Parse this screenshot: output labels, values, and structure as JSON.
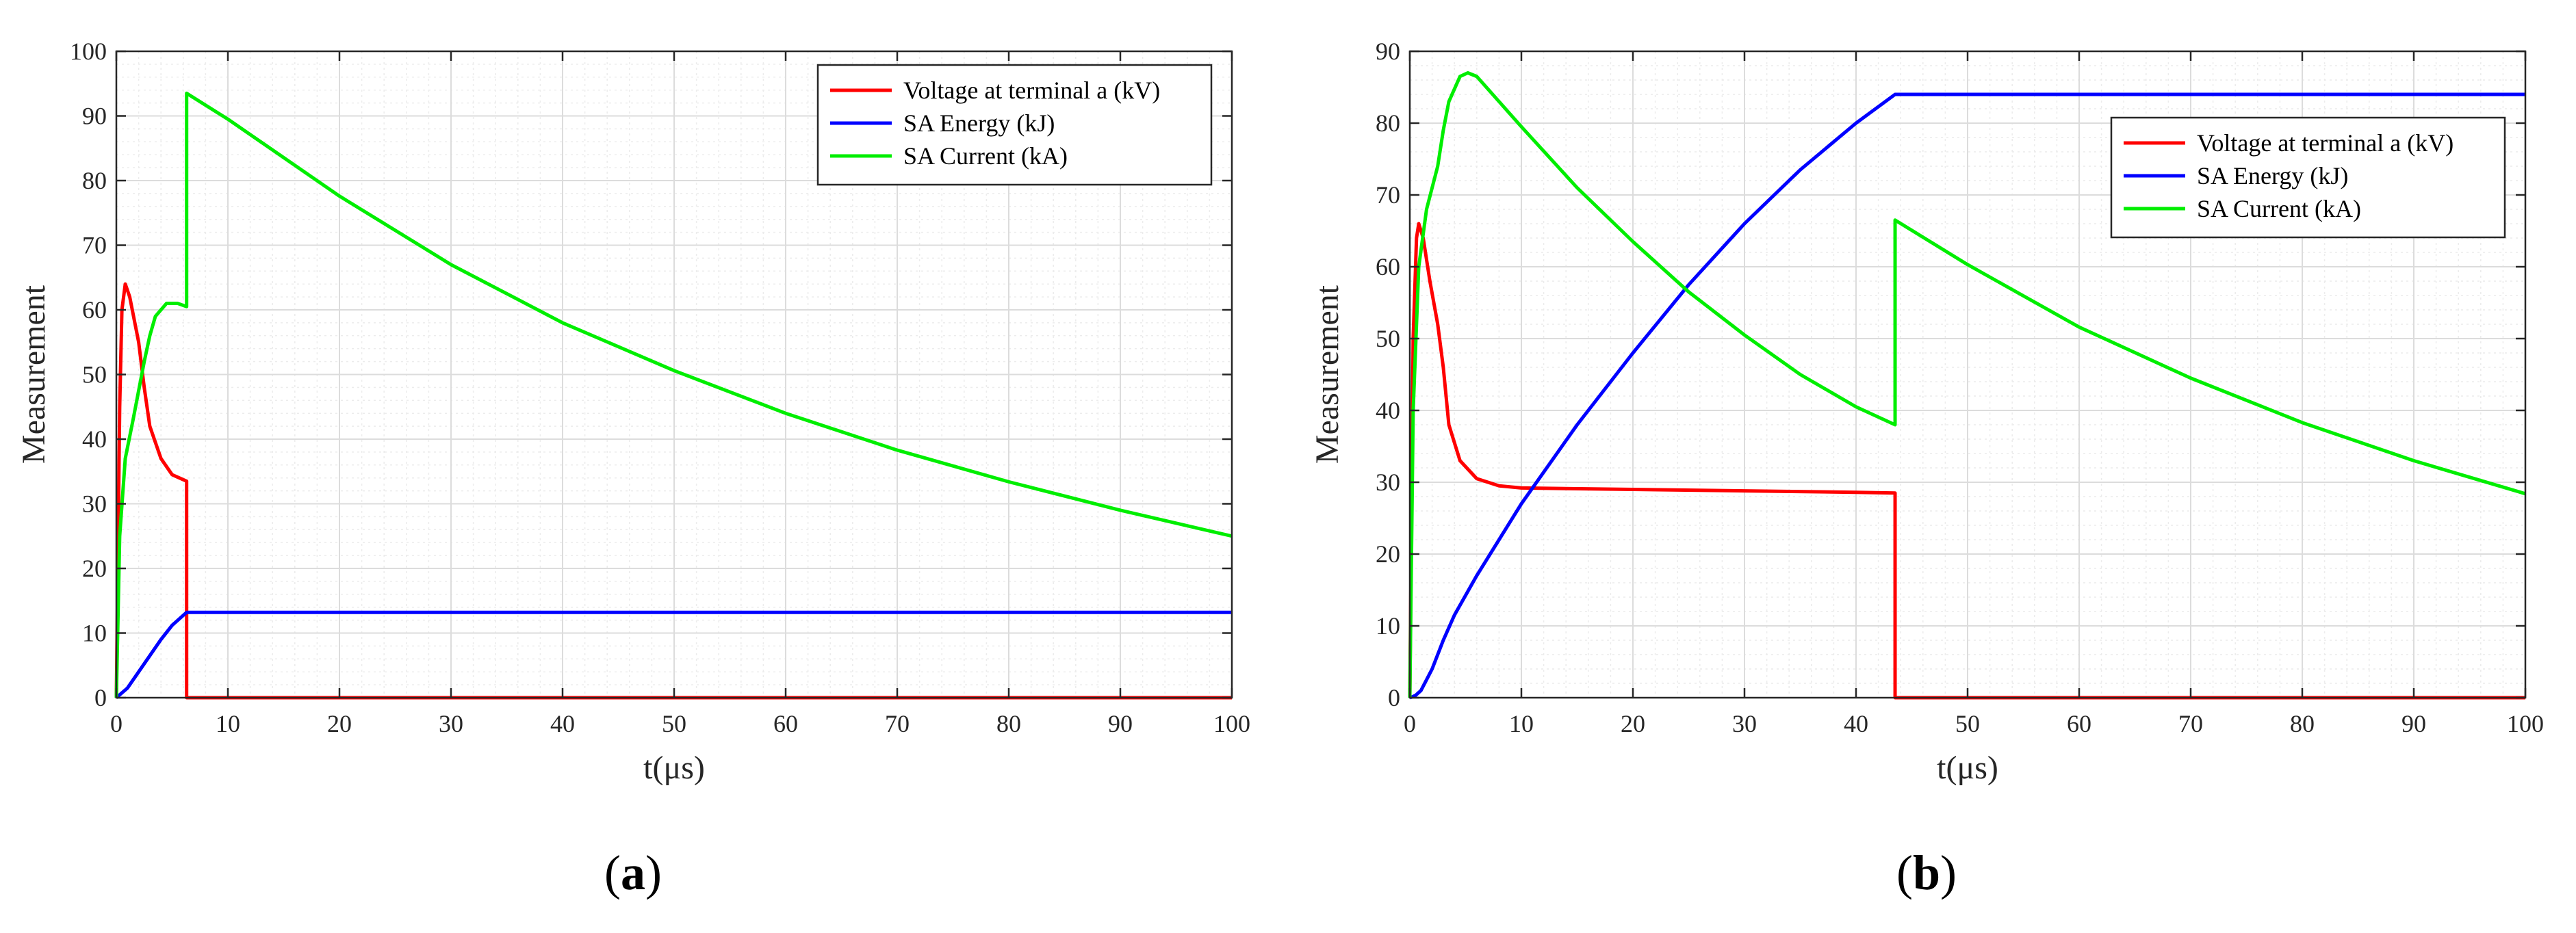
{
  "colors": {
    "voltage": "#ff0000",
    "energy": "#0000ff",
    "current": "#00ee00",
    "grid": "#dcdcdc",
    "minor_grid": "#ececec",
    "axis": "#262626"
  },
  "chart_data": [
    {
      "id": "a",
      "panel_label": "a",
      "type": "line",
      "xlabel": "t(μs)",
      "ylabel": "Measurement",
      "xlim": [
        0,
        100
      ],
      "ylim": [
        0,
        100
      ],
      "xticks": [
        0,
        10,
        20,
        30,
        40,
        50,
        60,
        70,
        80,
        90,
        100
      ],
      "yticks": [
        0,
        10,
        20,
        30,
        40,
        50,
        60,
        70,
        80,
        90,
        100
      ],
      "grid": true,
      "minor_grid": true,
      "legend_position": "top-right",
      "series": [
        {
          "name": "Voltage at terminal a (kV)",
          "color": "#ff0000",
          "points": [
            [
              0,
              0
            ],
            [
              0.3,
              45
            ],
            [
              0.5,
              60
            ],
            [
              0.8,
              64
            ],
            [
              1.2,
              62
            ],
            [
              2,
              55
            ],
            [
              2.5,
              48
            ],
            [
              3,
              42
            ],
            [
              4,
              37
            ],
            [
              5,
              34.5
            ],
            [
              6.3,
              33.5
            ],
            [
              6.3,
              0
            ],
            [
              100,
              0
            ]
          ]
        },
        {
          "name": "SA Energy (kJ)",
          "color": "#0000ff",
          "points": [
            [
              0,
              0
            ],
            [
              1,
              1.5
            ],
            [
              2,
              4
            ],
            [
              3,
              6.5
            ],
            [
              4,
              9
            ],
            [
              5,
              11.2
            ],
            [
              6.3,
              13.2
            ],
            [
              100,
              13.2
            ]
          ]
        },
        {
          "name": "SA Current (kA)",
          "color": "#00ee00",
          "points": [
            [
              0,
              0
            ],
            [
              0.3,
              25
            ],
            [
              0.8,
              37
            ],
            [
              1.5,
              43
            ],
            [
              2.5,
              52
            ],
            [
              3,
              56
            ],
            [
              3.5,
              59
            ],
            [
              4.5,
              61
            ],
            [
              5.5,
              61
            ],
            [
              6.3,
              60.5
            ],
            [
              6.3,
              93.5
            ],
            [
              10,
              89.5
            ],
            [
              20,
              77.6
            ],
            [
              30,
              67
            ],
            [
              40,
              58
            ],
            [
              50,
              50.6
            ],
            [
              60,
              44
            ],
            [
              70,
              38.3
            ],
            [
              80,
              33.4
            ],
            [
              90,
              29
            ],
            [
              100,
              25
            ]
          ]
        }
      ]
    },
    {
      "id": "b",
      "panel_label": "b",
      "type": "line",
      "xlabel": "t(μs)",
      "ylabel": "Measurement",
      "xlim": [
        0,
        100
      ],
      "ylim": [
        0,
        90
      ],
      "xticks": [
        0,
        10,
        20,
        30,
        40,
        50,
        60,
        70,
        80,
        90,
        100
      ],
      "yticks": [
        0,
        10,
        20,
        30,
        40,
        50,
        60,
        70,
        80,
        90
      ],
      "grid": true,
      "minor_grid": true,
      "legend_position": "top-right",
      "series": [
        {
          "name": "Voltage at terminal a (kV)",
          "color": "#ff0000",
          "points": [
            [
              0,
              0
            ],
            [
              0.3,
              50
            ],
            [
              0.6,
              64
            ],
            [
              0.8,
              66
            ],
            [
              1.2,
              64
            ],
            [
              1.8,
              58
            ],
            [
              2.5,
              52
            ],
            [
              3,
              46
            ],
            [
              3.5,
              38
            ],
            [
              4.5,
              33
            ],
            [
              6,
              30.5
            ],
            [
              8,
              29.5
            ],
            [
              10,
              29.2
            ],
            [
              20,
              29
            ],
            [
              30,
              28.8
            ],
            [
              40,
              28.6
            ],
            [
              43.5,
              28.5
            ],
            [
              43.5,
              0
            ],
            [
              100,
              0
            ]
          ]
        },
        {
          "name": "SA Energy (kJ)",
          "color": "#0000ff",
          "points": [
            [
              0,
              0
            ],
            [
              0.5,
              0.3
            ],
            [
              1,
              1
            ],
            [
              2,
              4
            ],
            [
              3,
              8
            ],
            [
              4,
              11.5
            ],
            [
              6,
              17
            ],
            [
              8,
              22
            ],
            [
              10,
              27
            ],
            [
              15,
              38
            ],
            [
              20,
              48
            ],
            [
              25,
              57.5
            ],
            [
              30,
              66
            ],
            [
              35,
              73.5
            ],
            [
              40,
              80
            ],
            [
              43.5,
              84
            ],
            [
              100,
              84
            ]
          ]
        },
        {
          "name": "SA Current (kA)",
          "color": "#00ee00",
          "points": [
            [
              0,
              0
            ],
            [
              0.3,
              40
            ],
            [
              0.8,
              60
            ],
            [
              1.5,
              68
            ],
            [
              2.5,
              74
            ],
            [
              3,
              79
            ],
            [
              3.5,
              83
            ],
            [
              4.5,
              86.5
            ],
            [
              5.2,
              87
            ],
            [
              6,
              86.5
            ],
            [
              8,
              83
            ],
            [
              10,
              79.5
            ],
            [
              15,
              71
            ],
            [
              20,
              63.5
            ],
            [
              25,
              56.5
            ],
            [
              30,
              50.5
            ],
            [
              35,
              45
            ],
            [
              40,
              40.5
            ],
            [
              43.5,
              38
            ],
            [
              43.5,
              66.5
            ],
            [
              50,
              60.3
            ],
            [
              60,
              51.6
            ],
            [
              70,
              44.5
            ],
            [
              80,
              38.3
            ],
            [
              90,
              33
            ],
            [
              100,
              28.4
            ]
          ]
        }
      ]
    }
  ]
}
